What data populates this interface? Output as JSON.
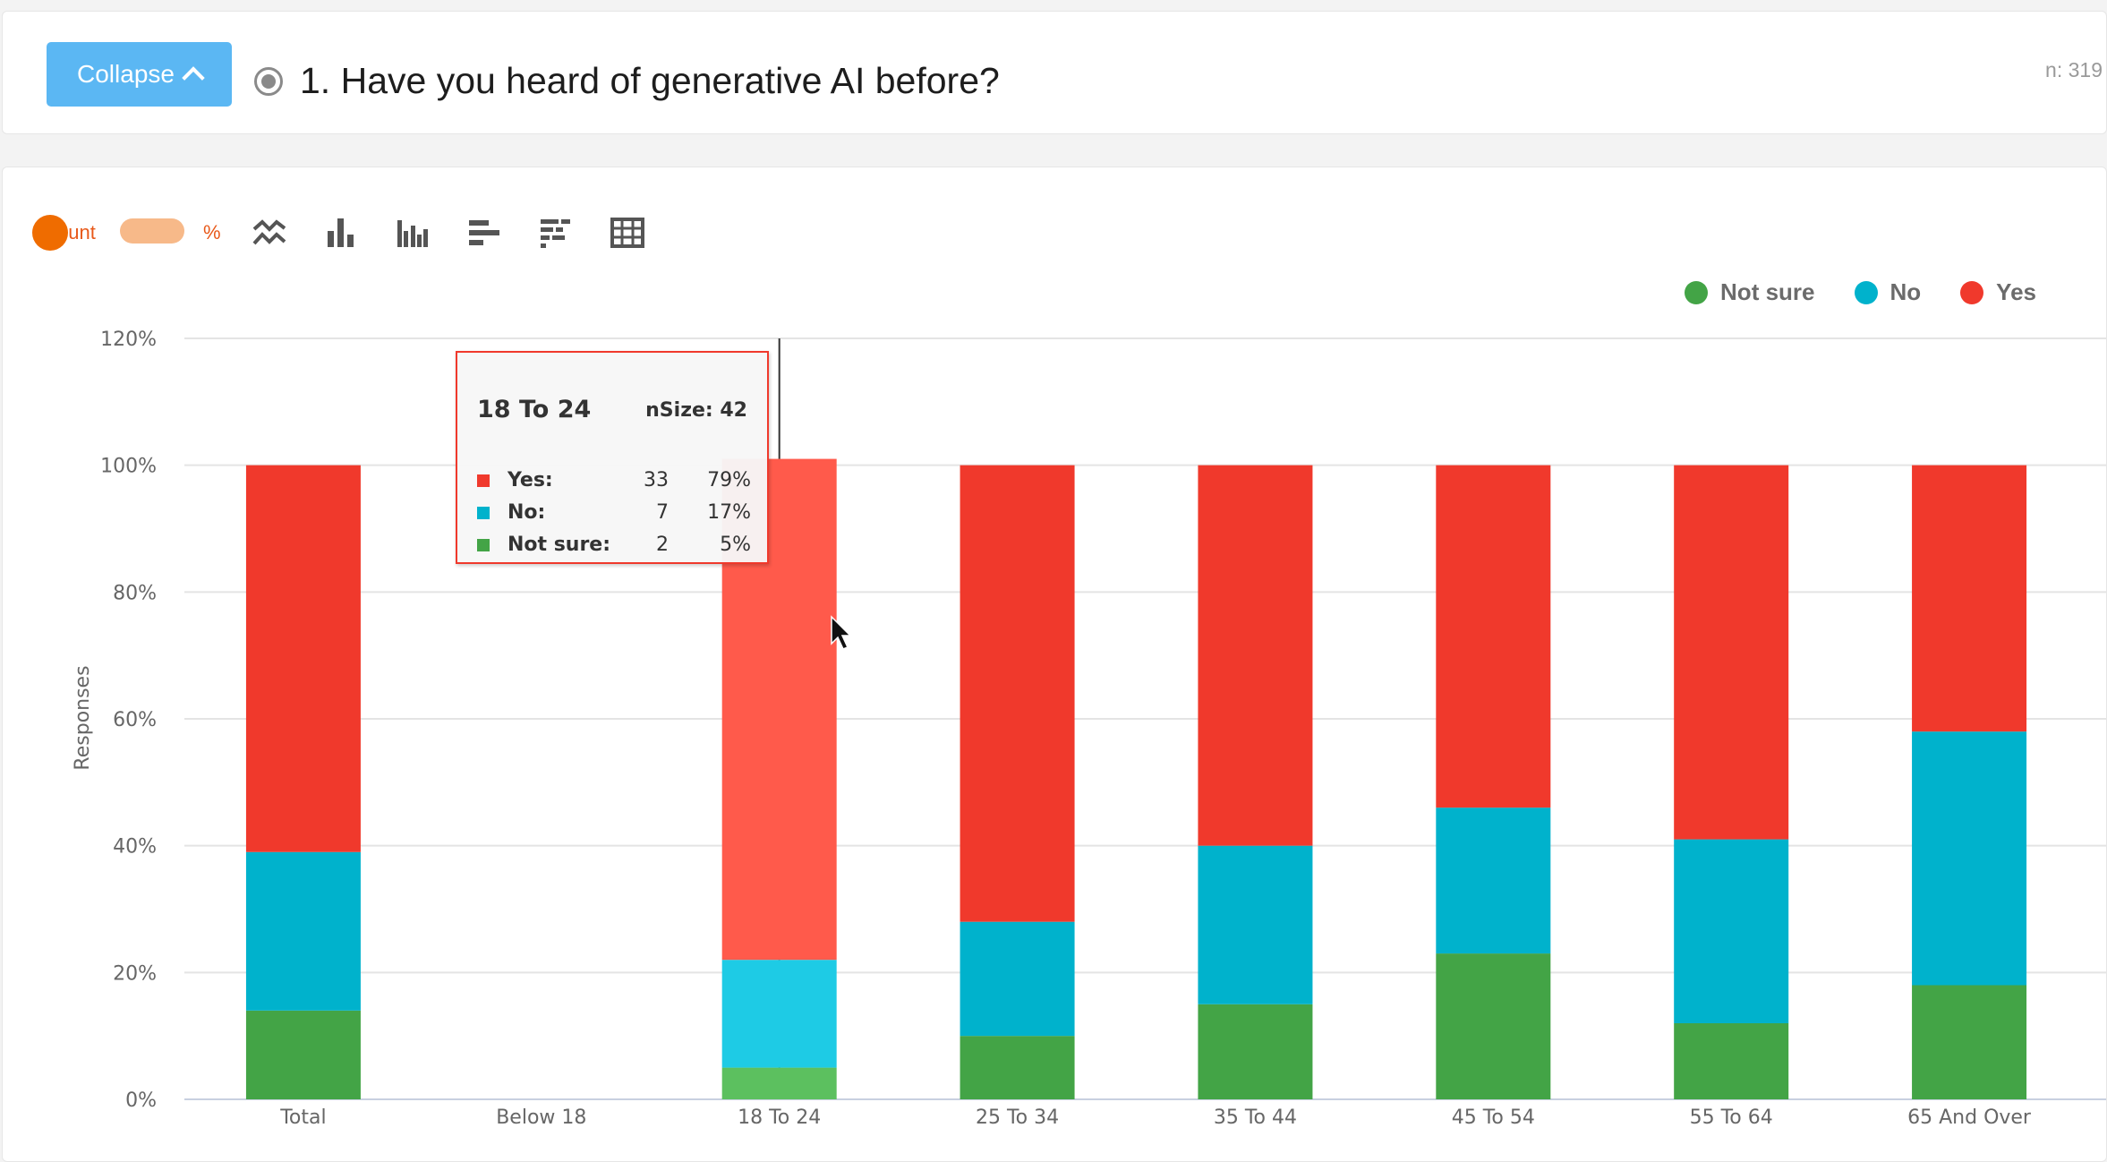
{
  "header": {
    "collapse_label": "Collapse",
    "question": "1. Have you heard of generative AI before?",
    "n_label": "n: 319"
  },
  "toolbar": {
    "count_label": "count",
    "percent_label": "%",
    "mode": "percent",
    "icons": [
      "line-chart-icon",
      "bar-chart-icon",
      "grouped-bar-chart-icon",
      "horizontal-bar-chart-icon",
      "stacked-horizontal-bar-icon",
      "table-icon"
    ]
  },
  "colors": {
    "yes": "#f0392c",
    "no": "#00b2cc",
    "not_sure": "#43a446",
    "yes_highlight": "#ff5a4b",
    "no_highlight": "#1ecbe5",
    "not_sure_highlight": "#5cc05f",
    "accent": "#5bb7f3",
    "toggle": "#ef6c00"
  },
  "chart_data": {
    "type": "bar",
    "stacked": true,
    "ylabel": "Responses",
    "ylim": [
      0,
      120
    ],
    "yticks": [
      "0%",
      "20%",
      "40%",
      "60%",
      "80%",
      "100%",
      "120%"
    ],
    "categories": [
      "Total",
      "Below 18",
      "18 To 24",
      "25 To 34",
      "35 To 44",
      "45 To 54",
      "55 To 64",
      "65 And Over"
    ],
    "series": [
      {
        "name": "Not sure",
        "key": "not_sure",
        "values": [
          14,
          0,
          5,
          10,
          15,
          23,
          12,
          18
        ]
      },
      {
        "name": "No",
        "key": "no",
        "values": [
          25,
          0,
          17,
          18,
          25,
          23,
          29,
          40
        ]
      },
      {
        "name": "Yes",
        "key": "yes",
        "values": [
          61,
          0,
          79,
          72,
          60,
          54,
          59,
          42
        ]
      }
    ],
    "legend": [
      "Not sure",
      "No",
      "Yes"
    ],
    "legend_position": "top-right",
    "grid": true,
    "highlighted_category": "18 To 24"
  },
  "tooltip": {
    "title": "18 To 24",
    "nsize": "nSize: 42",
    "rows": [
      {
        "label": "Yes:",
        "count": "33",
        "pct": "79%"
      },
      {
        "label": "No:",
        "count": "7",
        "pct": "17%"
      },
      {
        "label": "Not sure:",
        "count": "2",
        "pct": "5%"
      }
    ]
  }
}
